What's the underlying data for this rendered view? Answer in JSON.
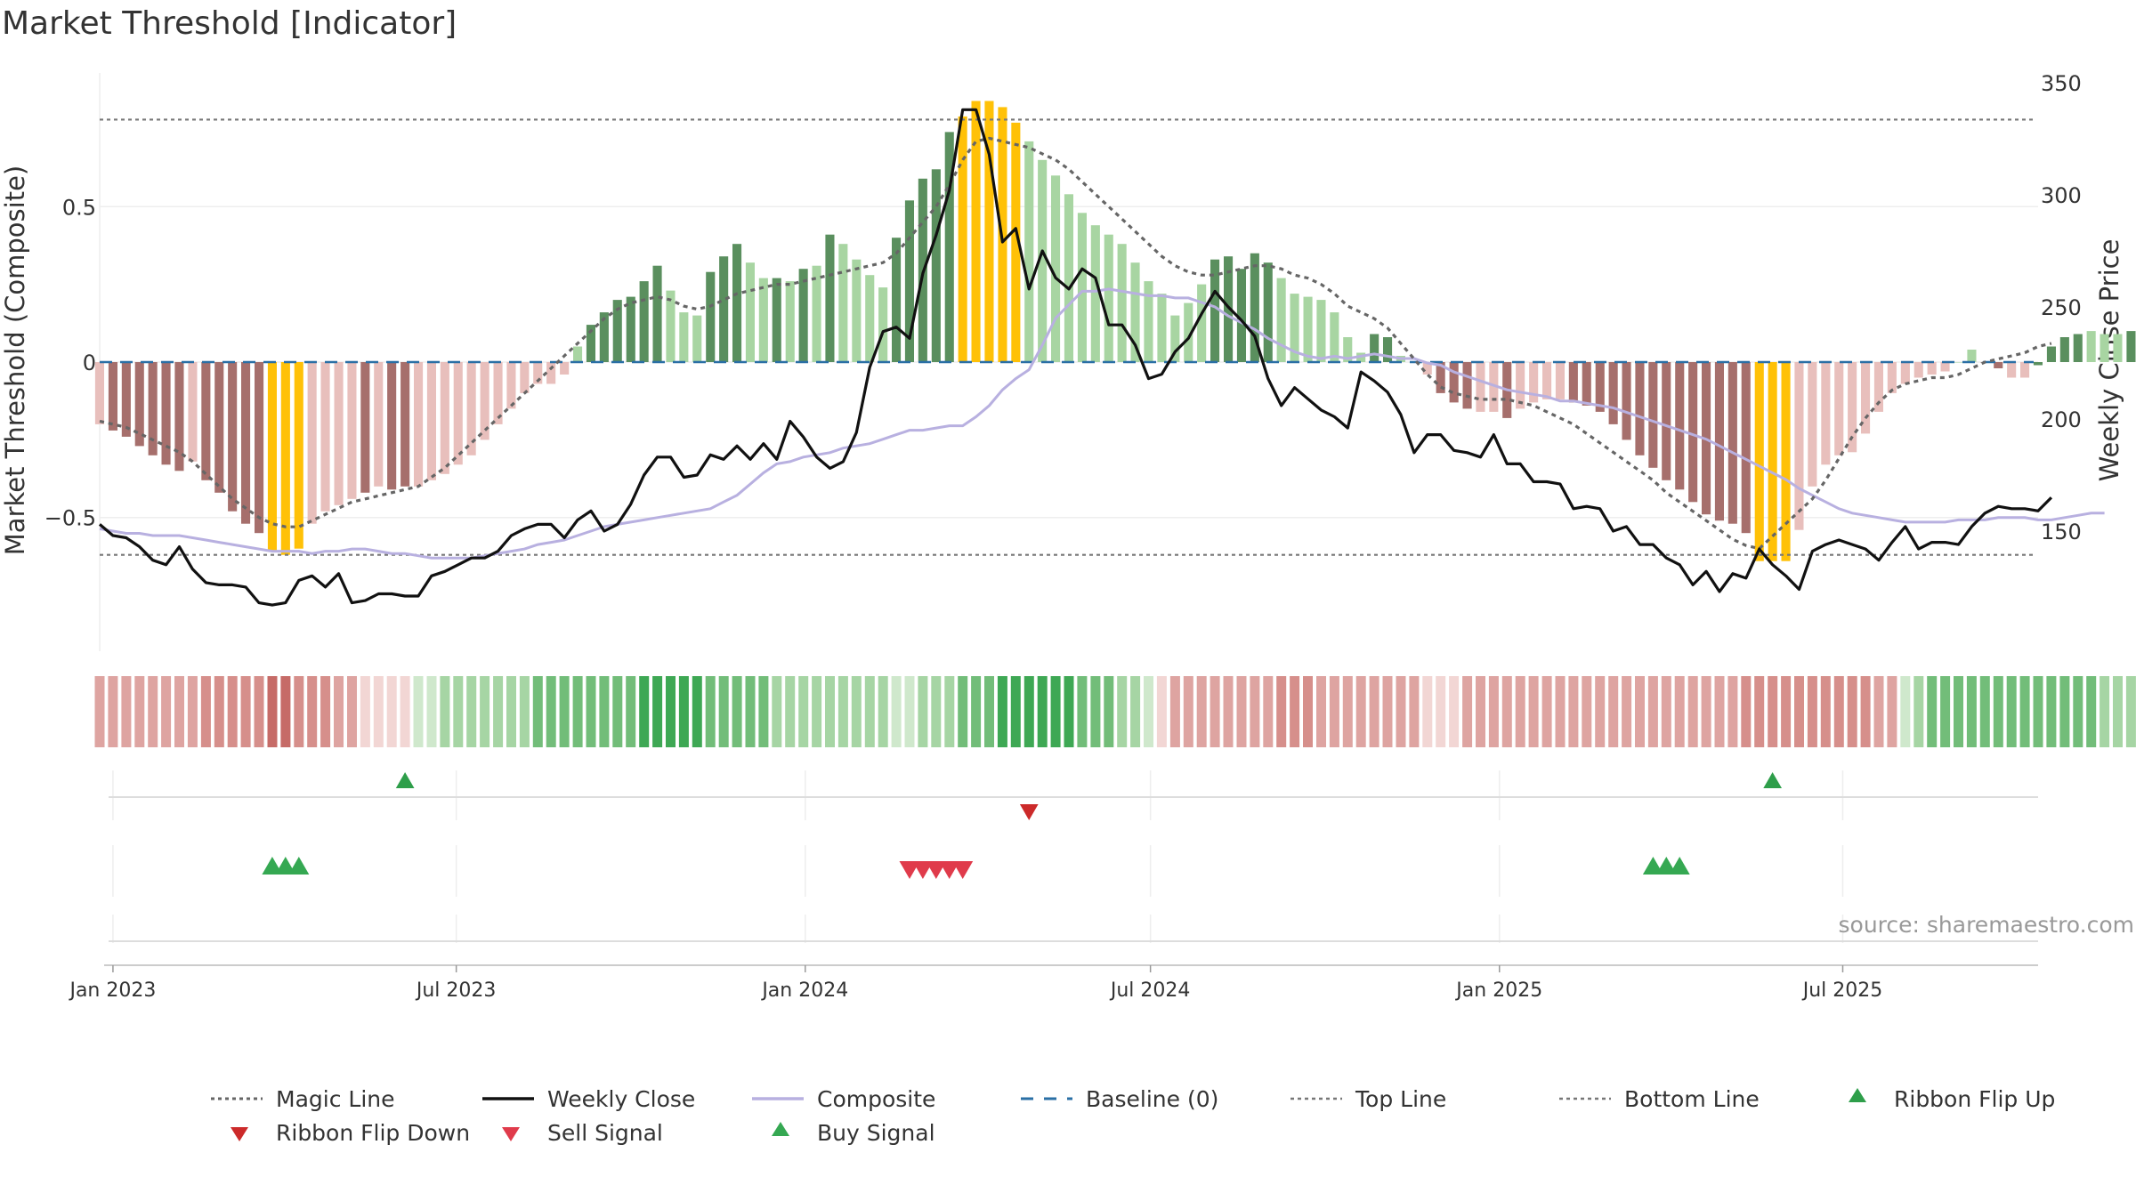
{
  "chart_data": {
    "type": "bar",
    "title": "Market Threshold [Indicator]",
    "ylabel_left": "Market Threshold (Composite)",
    "ylabel_right": "Weekly Close Price",
    "source": "source: sharemaestro.com",
    "ylim_left": [
      -0.93,
      0.93
    ],
    "ylim_right": [
      96.4,
      354.4
    ],
    "left_ticks": [
      {
        "v": 0.5,
        "label": "0.5"
      },
      {
        "v": 0,
        "label": "0"
      },
      {
        "v": -0.5,
        "label": "−0.5"
      }
    ],
    "right_ticks": [
      {
        "v": 350,
        "label": "350"
      },
      {
        "v": 300,
        "label": "300"
      },
      {
        "v": 250,
        "label": "250"
      },
      {
        "v": 200,
        "label": "200"
      },
      {
        "v": 150,
        "label": "150"
      }
    ],
    "x_ticks": [
      {
        "date": "2023-01-01",
        "label": "Jan 2023"
      },
      {
        "date": "2023-07-01",
        "label": "Jul 2023"
      },
      {
        "date": "2024-01-01",
        "label": "Jan 2024"
      },
      {
        "date": "2024-07-01",
        "label": "Jul 2024"
      },
      {
        "date": "2025-01-01",
        "label": "Jan 2025"
      },
      {
        "date": "2025-07-01",
        "label": "Jul 2025"
      }
    ],
    "x_start_date": "2022-12-25",
    "x_end_date": "2025-10-12",
    "top_line": 0.78,
    "bottom_line": -0.62,
    "colors": {
      "dark_green": "#5a8f5e",
      "light_green": "#a8d5a2",
      "dark_red": "#a66f6c",
      "light_red": "#e8bfbc",
      "gold": "#ffc107",
      "weekly_close": "#111111",
      "composite": "#b8b0e0",
      "magic": "#666666",
      "baseline": "#2a6fa5",
      "thresholds": "#777777",
      "flip_up": "#2e9e4a",
      "flip_down": "#cc2a2a",
      "sell": "#e03b4b",
      "buy": "#35a852"
    },
    "bars": [
      -0.2,
      -0.22,
      -0.24,
      -0.27,
      -0.3,
      -0.33,
      -0.35,
      -0.32,
      -0.38,
      -0.42,
      -0.48,
      -0.52,
      -0.55,
      -0.61,
      -0.62,
      -0.6,
      -0.52,
      -0.48,
      -0.46,
      -0.44,
      -0.42,
      -0.4,
      -0.41,
      -0.4,
      -0.4,
      -0.38,
      -0.36,
      -0.33,
      -0.3,
      -0.25,
      -0.2,
      -0.15,
      -0.1,
      -0.07,
      -0.07,
      -0.04,
      0.05,
      0.12,
      0.16,
      0.2,
      0.21,
      0.26,
      0.31,
      0.23,
      0.16,
      0.15,
      0.29,
      0.34,
      0.38,
      0.32,
      0.27,
      0.27,
      0.26,
      0.3,
      0.31,
      0.41,
      0.38,
      0.33,
      0.28,
      0.24,
      0.4,
      0.52,
      0.59,
      0.62,
      0.74,
      0.79,
      0.84,
      0.84,
      0.82,
      0.77,
      0.71,
      0.65,
      0.6,
      0.54,
      0.48,
      0.44,
      0.41,
      0.38,
      0.32,
      0.26,
      0.22,
      0.15,
      0.19,
      0.25,
      0.33,
      0.34,
      0.3,
      0.35,
      0.32,
      0.27,
      0.22,
      0.21,
      0.2,
      0.16,
      0.08,
      0.03,
      0.09,
      0.08,
      0.02,
      0.0,
      -0.04,
      -0.1,
      -0.13,
      -0.15,
      -0.16,
      -0.16,
      -0.18,
      -0.15,
      -0.13,
      -0.12,
      -0.12,
      -0.13,
      -0.14,
      -0.16,
      -0.2,
      -0.25,
      -0.3,
      -0.34,
      -0.38,
      -0.41,
      -0.45,
      -0.49,
      -0.51,
      -0.52,
      -0.55,
      -0.64,
      -0.64,
      -0.64,
      -0.54,
      -0.4,
      -0.33,
      -0.3,
      -0.29,
      -0.23,
      -0.16,
      -0.1,
      -0.07,
      -0.05,
      -0.04,
      -0.03,
      0.0,
      0.04,
      0.0,
      -0.02,
      -0.05,
      -0.05,
      -0.01,
      0.05,
      0.08,
      0.09,
      0.1,
      0.09,
      0.09,
      0.1,
      0.09,
      0.14
    ],
    "bar_styles": [
      "lr",
      "dr",
      "dr",
      "dr",
      "dr",
      "dr",
      "dr",
      "lr",
      "dr",
      "dr",
      "dr",
      "dr",
      "dr",
      "g",
      "g",
      "g",
      "lr",
      "lr",
      "lr",
      "lr",
      "dr",
      "lr",
      "dr",
      "dr",
      "lr",
      "lr",
      "lr",
      "lr",
      "lr",
      "lr",
      "lr",
      "lr",
      "lr",
      "lr",
      "lr",
      "lr",
      "lg",
      "dg",
      "dg",
      "dg",
      "dg",
      "dg",
      "dg",
      "lg",
      "lg",
      "lg",
      "dg",
      "dg",
      "dg",
      "lg",
      "lg",
      "dg",
      "lg",
      "dg",
      "lg",
      "dg",
      "lg",
      "lg",
      "lg",
      "lg",
      "dg",
      "dg",
      "dg",
      "dg",
      "dg",
      "g",
      "g",
      "g",
      "g",
      "g",
      "lg",
      "lg",
      "lg",
      "lg",
      "lg",
      "lg",
      "lg",
      "lg",
      "lg",
      "lg",
      "lg",
      "lg",
      "lg",
      "lg",
      "dg",
      "dg",
      "dg",
      "dg",
      "dg",
      "lg",
      "lg",
      "lg",
      "lg",
      "lg",
      "lg",
      "lg",
      "dg",
      "dg",
      "lg",
      "lg",
      "lr",
      "dr",
      "dr",
      "dr",
      "lr",
      "lr",
      "dr",
      "lr",
      "lr",
      "lr",
      "lr",
      "dr",
      "dr",
      "dr",
      "dr",
      "dr",
      "dr",
      "dr",
      "dr",
      "dr",
      "dr",
      "dr",
      "dr",
      "dr",
      "dr",
      "g",
      "g",
      "g",
      "lr",
      "lr",
      "lr",
      "lr",
      "lr",
      "lr",
      "lr",
      "lr",
      "lr",
      "lr",
      "lr",
      "lr",
      "lg",
      "lg",
      "dr",
      "dr",
      "lr",
      "lr",
      "dg",
      "dg",
      "dg",
      "dg",
      "lg",
      "lg",
      "lg",
      "dg"
    ],
    "weekly_close": [
      153,
      148,
      147,
      143,
      137,
      135,
      143,
      133,
      127,
      126,
      126,
      125,
      118,
      117,
      118,
      128,
      130,
      125,
      131,
      118,
      119,
      122,
      122,
      121,
      121,
      130,
      132,
      135,
      138,
      138,
      141,
      148,
      151,
      153,
      153,
      147,
      155,
      159,
      150,
      153,
      162,
      175,
      183,
      183,
      174,
      175,
      184,
      182,
      188,
      182,
      189,
      182,
      199,
      192,
      183,
      178,
      181,
      194,
      223,
      239,
      241,
      236,
      265,
      282,
      302,
      338,
      338,
      318,
      279,
      285,
      258,
      275,
      263,
      258,
      267,
      263,
      242,
      242,
      233,
      218,
      220,
      230,
      236,
      247,
      257,
      250,
      244,
      237,
      218,
      206,
      214,
      209,
      204,
      201,
      196,
      221,
      217,
      212,
      202,
      185,
      193,
      193,
      186,
      185,
      183,
      193,
      180,
      180,
      172,
      172,
      171,
      160,
      161,
      160,
      150,
      152,
      144,
      144,
      138,
      135,
      126,
      132,
      123,
      131,
      129,
      142,
      135,
      130,
      124,
      141,
      144,
      146,
      144,
      142,
      137,
      145,
      152,
      142,
      145,
      145,
      144,
      152,
      158,
      161,
      160,
      160,
      159,
      165
    ],
    "composite": [
      151,
      150,
      149,
      149,
      148,
      148,
      148,
      147,
      146,
      145,
      144,
      143,
      142,
      141,
      141,
      141,
      140,
      141,
      141,
      142,
      142,
      141,
      140,
      140,
      139,
      138,
      138,
      138,
      138,
      139,
      140,
      141,
      142,
      144,
      145,
      146,
      148,
      150,
      152,
      153,
      154,
      155,
      156,
      157,
      158,
      159,
      160,
      163,
      166,
      171,
      176,
      180,
      181,
      183,
      184,
      185,
      187,
      188,
      189,
      191,
      193,
      195,
      195,
      196,
      197,
      197,
      201,
      206,
      213,
      218,
      222,
      233,
      245,
      251,
      257,
      257,
      258,
      257,
      256,
      255,
      255,
      254,
      254,
      252,
      250,
      246,
      243,
      240,
      236,
      233,
      230,
      228,
      227,
      228,
      227,
      228,
      229,
      228,
      227,
      227,
      225,
      224,
      221,
      219,
      217,
      215,
      213,
      212,
      211,
      210,
      208,
      208,
      207,
      206,
      205,
      203,
      201,
      199,
      197,
      195,
      193,
      191,
      188,
      185,
      182,
      179,
      176,
      173,
      169,
      166,
      163,
      160,
      158,
      157,
      156,
      155,
      154,
      154,
      154,
      154,
      155,
      155,
      155,
      156,
      156,
      156,
      155,
      155,
      156,
      157,
      158,
      158
    ],
    "magic": [
      -0.19,
      -0.2,
      -0.21,
      -0.23,
      -0.25,
      -0.27,
      -0.29,
      -0.32,
      -0.36,
      -0.4,
      -0.44,
      -0.47,
      -0.5,
      -0.52,
      -0.53,
      -0.53,
      -0.51,
      -0.49,
      -0.47,
      -0.45,
      -0.44,
      -0.43,
      -0.42,
      -0.41,
      -0.4,
      -0.37,
      -0.34,
      -0.3,
      -0.26,
      -0.22,
      -0.18,
      -0.14,
      -0.1,
      -0.06,
      -0.02,
      0.02,
      0.06,
      0.1,
      0.14,
      0.17,
      0.19,
      0.2,
      0.21,
      0.2,
      0.18,
      0.17,
      0.18,
      0.2,
      0.22,
      0.23,
      0.24,
      0.25,
      0.25,
      0.26,
      0.27,
      0.28,
      0.29,
      0.3,
      0.31,
      0.32,
      0.35,
      0.4,
      0.45,
      0.5,
      0.57,
      0.65,
      0.71,
      0.72,
      0.71,
      0.7,
      0.69,
      0.67,
      0.65,
      0.62,
      0.58,
      0.54,
      0.5,
      0.46,
      0.42,
      0.38,
      0.34,
      0.31,
      0.29,
      0.28,
      0.28,
      0.29,
      0.3,
      0.31,
      0.31,
      0.3,
      0.28,
      0.27,
      0.25,
      0.22,
      0.18,
      0.16,
      0.14,
      0.11,
      0.06,
      0.01,
      -0.04,
      -0.08,
      -0.1,
      -0.11,
      -0.12,
      -0.12,
      -0.12,
      -0.13,
      -0.14,
      -0.16,
      -0.18,
      -0.2,
      -0.23,
      -0.26,
      -0.29,
      -0.32,
      -0.35,
      -0.38,
      -0.42,
      -0.45,
      -0.48,
      -0.51,
      -0.54,
      -0.57,
      -0.59,
      -0.6,
      -0.56,
      -0.52,
      -0.48,
      -0.44,
      -0.38,
      -0.31,
      -0.24,
      -0.18,
      -0.13,
      -0.09,
      -0.07,
      -0.06,
      -0.05,
      -0.05,
      -0.04,
      -0.02,
      0.0,
      0.01,
      0.02,
      0.03,
      0.05,
      0.06
    ],
    "ribbon": [
      "r2",
      "r2",
      "r2",
      "r2",
      "r2",
      "r2",
      "r2",
      "r2",
      "r3",
      "r3",
      "r3",
      "r3",
      "r3",
      "r4",
      "r4",
      "r3",
      "r3",
      "r3",
      "r2",
      "r2",
      "r1",
      "r1",
      "r1",
      "r1",
      "g1",
      "g1",
      "g2",
      "g2",
      "g2",
      "g2",
      "g2",
      "g2",
      "g2",
      "g3",
      "g3",
      "g3",
      "g3",
      "g3",
      "g3",
      "g3",
      "g3",
      "g4",
      "g4",
      "g4",
      "g4",
      "g4",
      "g3",
      "g3",
      "g3",
      "g3",
      "g3",
      "g2",
      "g2",
      "g2",
      "g2",
      "g2",
      "g2",
      "g2",
      "g2",
      "g2",
      "g1",
      "g1",
      "g2",
      "g2",
      "g2",
      "g3",
      "g3",
      "g3",
      "g4",
      "g4",
      "g4",
      "g4",
      "g4",
      "g4",
      "g3",
      "g3",
      "g3",
      "g2",
      "g2",
      "g1",
      "r1",
      "r2",
      "r2",
      "r2",
      "r2",
      "r2",
      "r2",
      "r2",
      "r2",
      "r3",
      "r3",
      "r3",
      "r2",
      "r2",
      "r2",
      "r2",
      "r2",
      "r2",
      "r2",
      "r2",
      "r1",
      "r1",
      "r1",
      "r2",
      "r2",
      "r2",
      "r2",
      "r2",
      "r2",
      "r2",
      "r2",
      "r2",
      "r2",
      "r2",
      "r2",
      "r2",
      "r2",
      "r2",
      "r2",
      "r2",
      "r2",
      "r2",
      "r2",
      "r2",
      "r3",
      "r3",
      "r3",
      "r3",
      "r3",
      "r3",
      "r3",
      "r3",
      "r3",
      "r3",
      "r2",
      "r2",
      "g1",
      "g2",
      "g3",
      "g3",
      "g3",
      "g3",
      "g3",
      "g3",
      "g3",
      "g3",
      "g3",
      "g3",
      "g3",
      "g3",
      "g3",
      "g2",
      "g2",
      "g2",
      "g2",
      "g2"
    ],
    "ribbon_colors": {
      "r1": "#f2d6d4",
      "r2": "#dea4a1",
      "r3": "#d68f8b",
      "r4": "#c66b67",
      "g1": "#cfe8cc",
      "g2": "#a6d5a4",
      "g3": "#72bd79",
      "g4": "#3ea854"
    },
    "events": {
      "ribbon_flip_up": [
        "2023-06-04",
        "2025-05-25"
      ],
      "ribbon_flip_down": [
        "2024-04-28"
      ],
      "buy": [
        "2023-03-26",
        "2023-04-02",
        "2023-04-09",
        "2025-03-23",
        "2025-03-30",
        "2025-04-06"
      ],
      "sell": [
        "2024-02-25",
        "2024-03-03",
        "2024-03-10",
        "2024-03-17",
        "2024-03-24"
      ]
    },
    "legend": [
      {
        "key": "magic",
        "label": "Magic Line"
      },
      {
        "key": "weekly_close",
        "label": "Weekly Close"
      },
      {
        "key": "composite",
        "label": "Composite"
      },
      {
        "key": "baseline",
        "label": "Baseline (0)"
      },
      {
        "key": "top_line",
        "label": "Top Line"
      },
      {
        "key": "bottom_line",
        "label": "Bottom Line"
      },
      {
        "key": "ribbon_flip_up",
        "label": "Ribbon Flip Up"
      },
      {
        "key": "ribbon_flip_down",
        "label": "Ribbon Flip Down"
      },
      {
        "key": "sell",
        "label": "Sell Signal"
      },
      {
        "key": "buy",
        "label": "Buy Signal"
      }
    ]
  }
}
